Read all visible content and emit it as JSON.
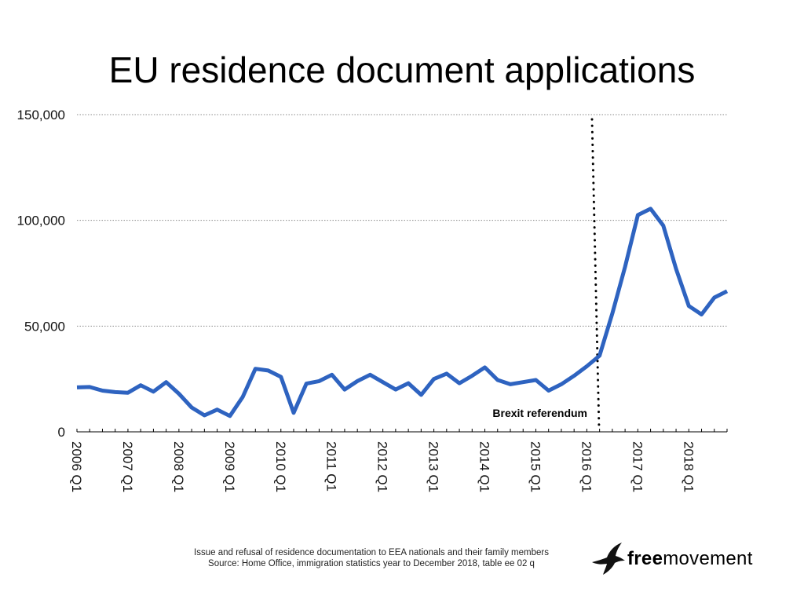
{
  "chart_data": {
    "type": "line",
    "title": "EU residence document applications",
    "xlabel": "",
    "ylabel": "",
    "ylim": [
      0,
      150000
    ],
    "y_ticks": [
      0,
      50000,
      100000,
      150000
    ],
    "y_tick_labels": [
      "0",
      "50,000",
      "100,000",
      "150,000"
    ],
    "x_tick_labels": [
      "2006 Q1",
      "2007 Q1",
      "2008 Q1",
      "2009 Q1",
      "2010 Q1",
      "2011 Q1",
      "2012 Q1",
      "2013 Q1",
      "2014 Q1",
      "2015 Q1",
      "2016 Q1",
      "2017 Q1",
      "2018 Q1"
    ],
    "grid": "horizontal dotted",
    "series": [
      {
        "x": [
          "2006 Q1",
          "2006 Q2",
          "2006 Q3",
          "2006 Q4",
          "2007 Q1",
          "2007 Q2",
          "2007 Q3",
          "2007 Q4",
          "2008 Q1",
          "2008 Q2",
          "2008 Q3",
          "2008 Q4",
          "2009 Q1",
          "2009 Q2",
          "2009 Q3",
          "2009 Q4",
          "2010 Q1",
          "2010 Q2",
          "2010 Q3",
          "2010 Q4",
          "2011 Q1",
          "2011 Q2",
          "2011 Q3",
          "2011 Q4",
          "2012 Q1",
          "2012 Q2",
          "2012 Q3",
          "2012 Q4",
          "2013 Q1",
          "2013 Q2",
          "2013 Q3",
          "2013 Q4",
          "2014 Q1",
          "2014 Q2",
          "2014 Q3",
          "2014 Q4",
          "2015 Q1",
          "2015 Q2",
          "2015 Q3",
          "2015 Q4",
          "2016 Q1",
          "2016 Q2",
          "2016 Q3",
          "2016 Q4",
          "2017 Q1",
          "2017 Q2",
          "2017 Q3",
          "2017 Q4",
          "2018 Q1",
          "2018 Q2",
          "2018 Q3",
          "2018 Q4"
        ],
        "values": [
          21000,
          21200,
          19500,
          18800,
          18500,
          22000,
          19000,
          23500,
          18000,
          11500,
          7800,
          10500,
          7500,
          16500,
          29800,
          29000,
          26000,
          9000,
          22800,
          24000,
          27000,
          20000,
          24000,
          27000,
          23500,
          20000,
          23000,
          17500,
          25000,
          27500,
          23000,
          26500,
          30500,
          24500,
          22500,
          23500,
          24500,
          19500,
          22500,
          26500,
          31000,
          36000,
          56000,
          78000,
          102500,
          105500,
          97500,
          77000,
          59500,
          55500,
          63500,
          66500
        ],
        "color": "#2e63c0"
      }
    ],
    "annotations": [
      {
        "label": "Brexit referendum",
        "x": "2016 Q2",
        "style": "vertical dotted line"
      }
    ]
  },
  "footnote": {
    "line1": "Issue and refusal of residence documentation to EEA nationals and their family members",
    "line2": "Source: Home Office, immigration statistics year to December 2018, table ee 02 q"
  },
  "logo": {
    "bold": "free",
    "regular": "movement"
  }
}
